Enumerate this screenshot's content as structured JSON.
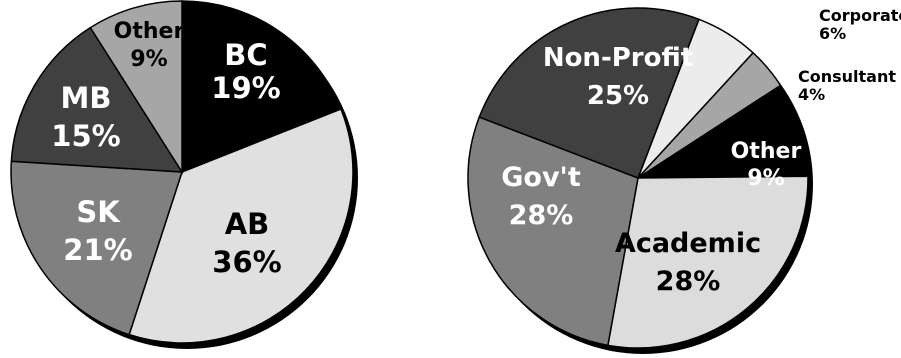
{
  "chart_data": [
    {
      "type": "pie",
      "title": "",
      "slices": [
        {
          "label": "BC",
          "value": 19,
          "text": "19%",
          "color": "#000000",
          "text_color": "#ffffff"
        },
        {
          "label": "AB",
          "value": 36,
          "text": "36%",
          "color": "#e0e0e0",
          "text_color": "#000000"
        },
        {
          "label": "SK",
          "value": 21,
          "text": "21%",
          "color": "#808080",
          "text_color": "#ffffff"
        },
        {
          "label": "MB",
          "value": 15,
          "text": "15%",
          "color": "#404040",
          "text_color": "#ffffff"
        },
        {
          "label": "Other",
          "value": 9,
          "text": "9%",
          "color": "#a6a6a6",
          "text_color": "#000000"
        }
      ]
    },
    {
      "type": "pie",
      "title": "",
      "slices": [
        {
          "label": "Corporate",
          "value": 6,
          "text": "6%",
          "color": "#ececec",
          "text_color": "#000000"
        },
        {
          "label": "Consultant",
          "value": 4,
          "text": "4%",
          "color": "#a6a6a6",
          "text_color": "#000000"
        },
        {
          "label": "Other",
          "value": 9,
          "text": "9%",
          "color": "#000000",
          "text_color": "#ffffff"
        },
        {
          "label": "Academic",
          "value": 28,
          "text": "28%",
          "color": "#dcdcdc",
          "text_color": "#000000"
        },
        {
          "label": "Gov't",
          "value": 28,
          "text": "28%",
          "color": "#808080",
          "text_color": "#ffffff"
        },
        {
          "label": "Non-Profit",
          "value": 25,
          "text": "25%",
          "color": "#404040",
          "text_color": "#ffffff"
        }
      ]
    }
  ]
}
